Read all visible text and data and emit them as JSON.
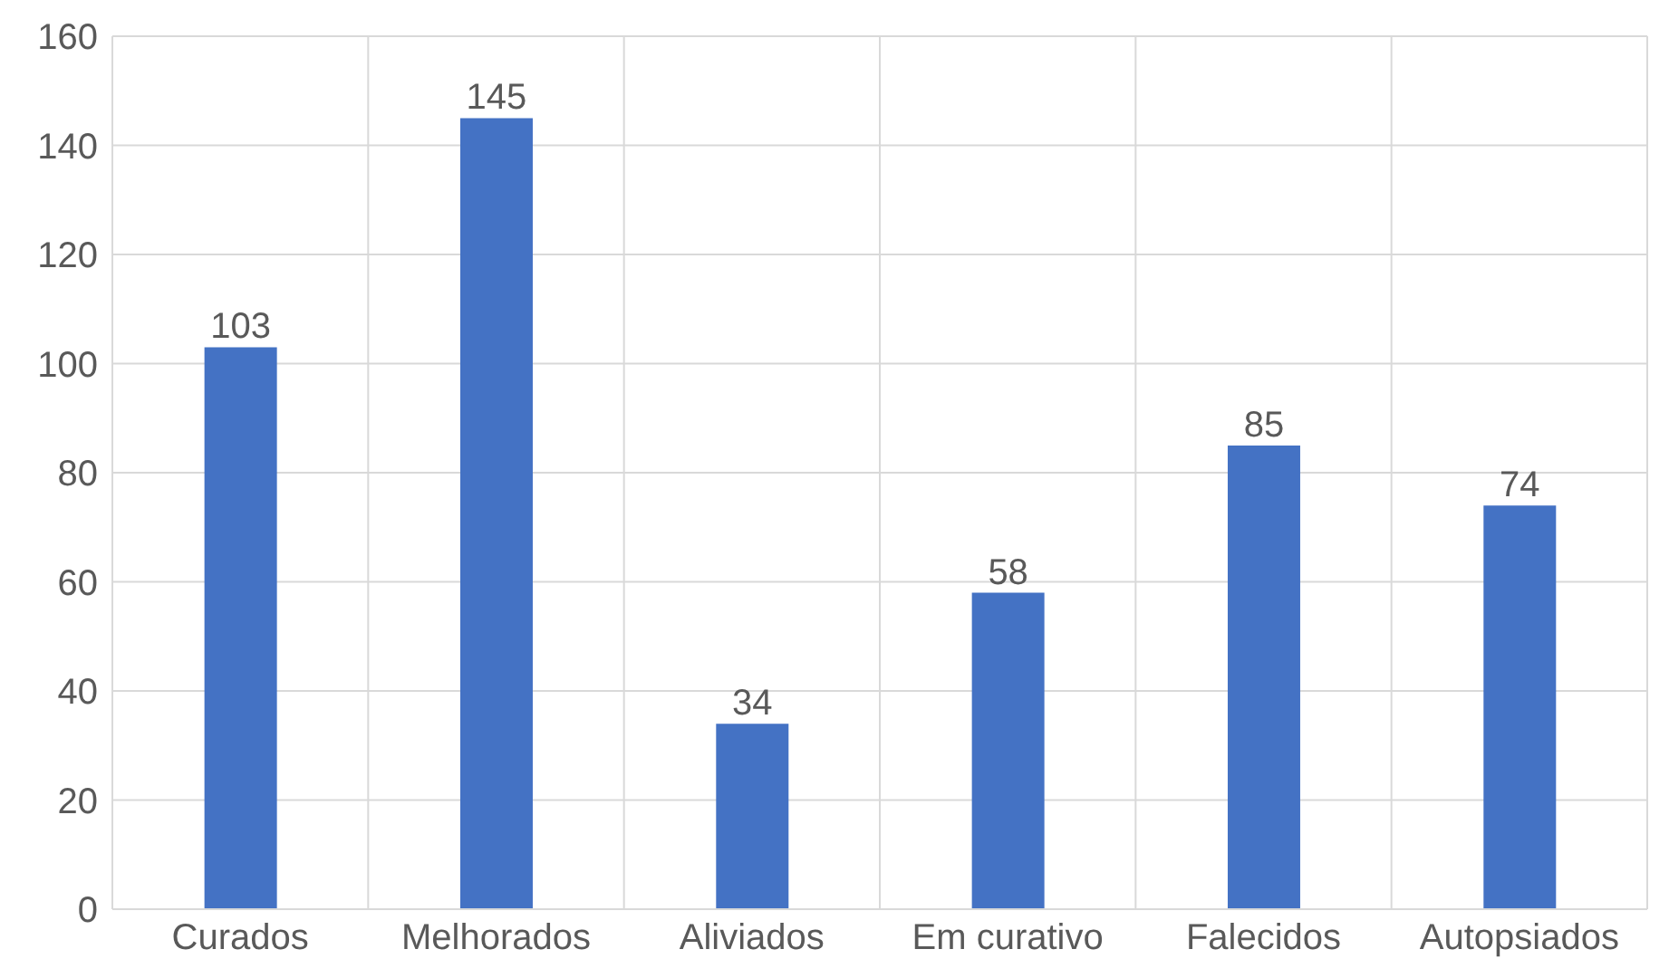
{
  "chart_data": {
    "type": "bar",
    "categories": [
      "Curados",
      "Melhorados",
      "Aliviados",
      "Em curativo",
      "Falecidos",
      "Autopsiados"
    ],
    "values": [
      103,
      145,
      34,
      58,
      85,
      74
    ],
    "color": "#4472c4",
    "ylim": [
      0,
      160
    ],
    "yticks": [
      0,
      20,
      40,
      60,
      80,
      100,
      120,
      140,
      160
    ],
    "grid": true,
    "data_labels": true
  }
}
